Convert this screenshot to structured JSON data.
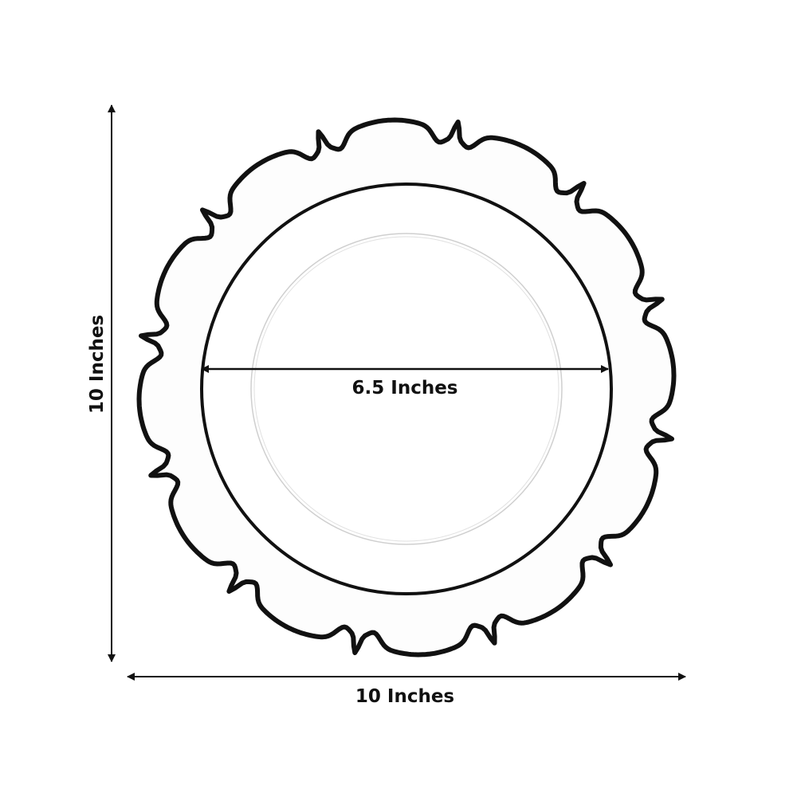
{
  "product": {
    "outer_rim_color": "#111111",
    "plate_color": "#ffffff",
    "scallop_count": 12
  },
  "dimensions": {
    "height_label": "10 Inches",
    "width_label": "10 Inches",
    "inner_diameter_label": "6.5 Inches"
  }
}
